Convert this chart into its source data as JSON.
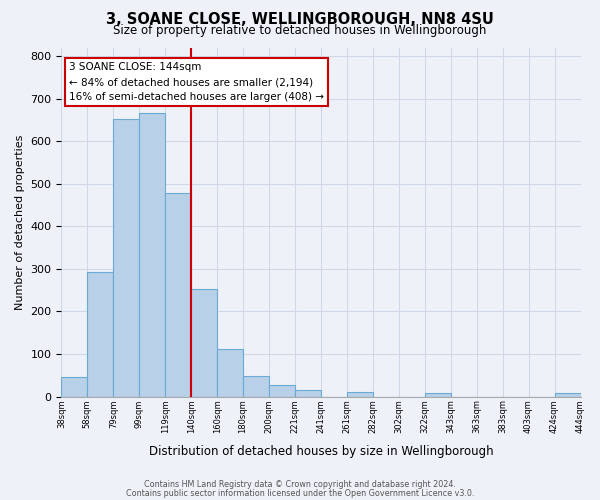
{
  "title": "3, SOANE CLOSE, WELLINGBOROUGH, NN8 4SU",
  "subtitle": "Size of property relative to detached houses in Wellingborough",
  "xlabel": "Distribution of detached houses by size in Wellingborough",
  "ylabel": "Number of detached properties",
  "tick_labels": [
    "38sqm",
    "58sqm",
    "79sqm",
    "99sqm",
    "119sqm",
    "140sqm",
    "160sqm",
    "180sqm",
    "200sqm",
    "221sqm",
    "241sqm",
    "261sqm",
    "282sqm",
    "302sqm",
    "322sqm",
    "343sqm",
    "363sqm",
    "383sqm",
    "403sqm",
    "424sqm",
    "444sqm"
  ],
  "bar_heights": [
    47,
    293,
    651,
    665,
    479,
    253,
    113,
    48,
    27,
    15,
    0,
    12,
    0,
    0,
    8,
    0,
    0,
    0,
    0,
    8
  ],
  "n_bars": 20,
  "bar_color": "#b8d0e8",
  "bar_edge_color": "#6aaad4",
  "vline_pos": 5,
  "vline_color": "#cc0000",
  "box_text_line1": "3 SOANE CLOSE: 144sqm",
  "box_text_line2": "← 84% of detached houses are smaller (2,194)",
  "box_text_line3": "16% of semi-detached houses are larger (408) →",
  "box_color": "#ffffff",
  "box_edge_color": "#cc0000",
  "ylim": [
    0,
    820
  ],
  "yticks": [
    0,
    100,
    200,
    300,
    400,
    500,
    600,
    700,
    800
  ],
  "background_color": "#eef2f8",
  "grid_color": "#d0d8e8",
  "footer_line1": "Contains HM Land Registry data © Crown copyright and database right 2024.",
  "footer_line2": "Contains public sector information licensed under the Open Government Licence v3.0."
}
